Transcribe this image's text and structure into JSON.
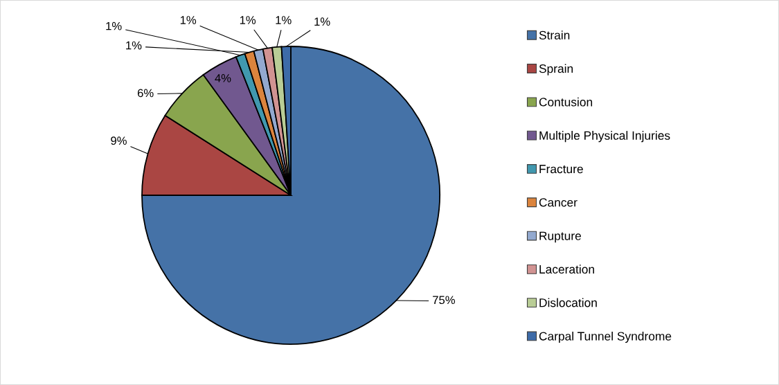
{
  "chart_data": {
    "type": "pie",
    "categories": [
      "Strain",
      "Sprain",
      "Contusion",
      "Multiple Physical Injuries",
      "Fracture",
      "Cancer",
      "Rupture",
      "Laceration",
      "Dislocation",
      "Carpal Tunnel Syndrome"
    ],
    "values": [
      75,
      9,
      6,
      4,
      1,
      1,
      1,
      1,
      1,
      1
    ],
    "colors": [
      "#4572a7",
      "#aa4643",
      "#89a54e",
      "#71588f",
      "#4198af",
      "#db843d",
      "#93a9cf",
      "#d19392",
      "#b9cd96",
      "#3d6ba8"
    ],
    "value_labels": [
      "75%",
      "9%",
      "6%",
      "4%",
      "1%",
      "1%",
      "1%",
      "1%",
      "1%",
      "1%"
    ],
    "legend": "right"
  }
}
